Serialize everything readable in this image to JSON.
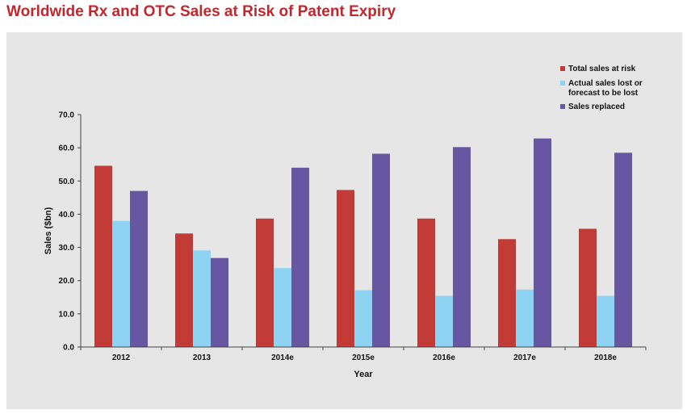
{
  "title": "Worldwide Rx and OTC Sales at Risk of Patent Expiry",
  "chart_data": {
    "type": "bar",
    "categories": [
      "2012",
      "2013",
      "2014e",
      "2015e",
      "2016e",
      "2017e",
      "2018e"
    ],
    "series": [
      {
        "name": "Total sales at risk",
        "color": "#c23b36",
        "values": [
          54.6,
          34.2,
          38.7,
          47.3,
          38.7,
          32.5,
          35.6
        ]
      },
      {
        "name": "Actual sales lost or forecast to be lost",
        "color": "#8fd3f2",
        "values": [
          38.0,
          29.1,
          23.8,
          17.1,
          15.4,
          17.3,
          15.4
        ]
      },
      {
        "name": "Sales replaced",
        "color": "#6756a2",
        "values": [
          47.0,
          26.8,
          54.0,
          58.2,
          60.2,
          62.8,
          58.5
        ]
      }
    ],
    "yticks": [
      "0.0",
      "10.0",
      "20.0",
      "30.0",
      "40.0",
      "50.0",
      "60.0",
      "70.0"
    ],
    "ylim": [
      0,
      70
    ],
    "xlabel": "Year",
    "ylabel": "Sales ($bn)",
    "legend_position": "top-right",
    "grid": false
  }
}
